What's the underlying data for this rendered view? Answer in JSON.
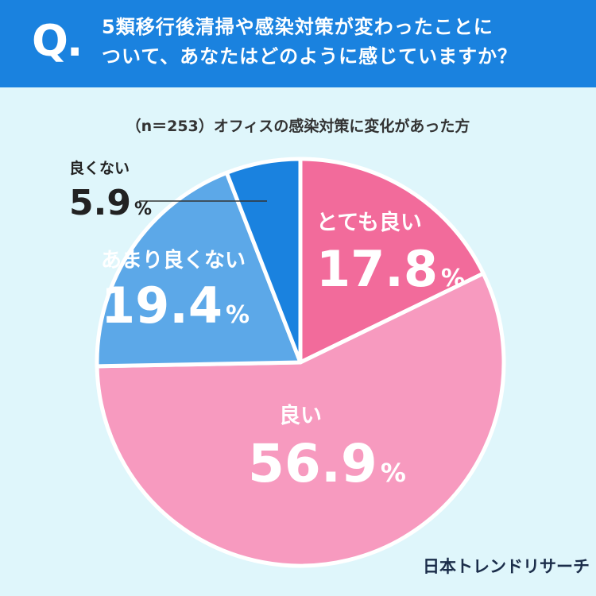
{
  "header": {
    "q_mark": "Q.",
    "question_line1": "5類移行後清掃や感染対策が変わったことに",
    "question_line2": "ついて、あなたはどのように感じていますか？"
  },
  "subtitle": "（n＝253）オフィスの感染対策に変化があった方",
  "brand": "日本トレンドリサーチ",
  "colors": {
    "header_bg": "#1a82df",
    "background": "#dff6fb"
  },
  "chart_data": {
    "type": "pie",
    "start": "12 o'clock, clockwise",
    "slices": [
      {
        "label": "とても良い",
        "value": 17.8,
        "display": "17.8",
        "color": "#f26b9b"
      },
      {
        "label": "良い",
        "value": 56.9,
        "display": "56.9",
        "color": "#f79abf"
      },
      {
        "label": "あまり良くない",
        "value": 19.4,
        "display": "19.4",
        "color": "#5ca8e8"
      },
      {
        "label": "良くない",
        "value": 5.9,
        "display": "5.9",
        "color": "#1a82df"
      }
    ],
    "unit": "%"
  }
}
